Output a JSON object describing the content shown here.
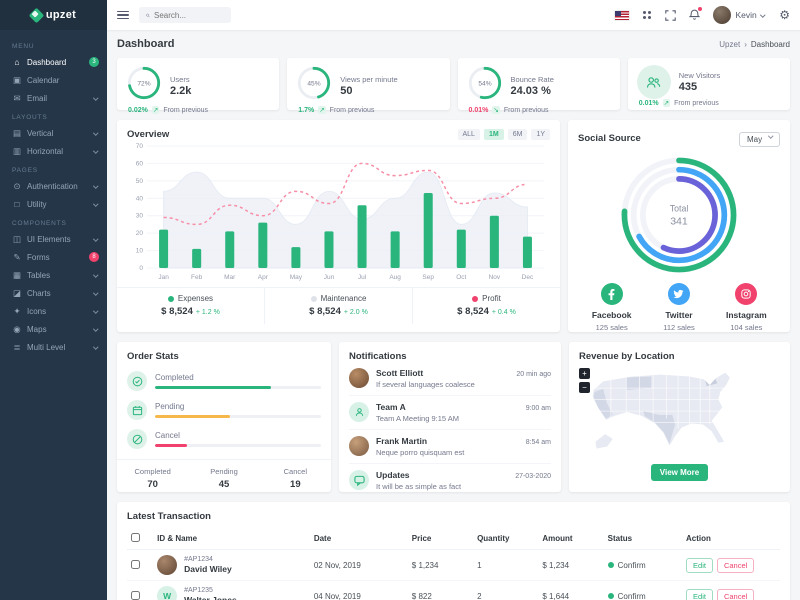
{
  "brand": {
    "name": "upzet"
  },
  "topbar": {
    "search_placeholder": "Search...",
    "user_name": "Kevin"
  },
  "page": {
    "title": "Dashboard",
    "breadcrumb_root": "Upzet",
    "breadcrumb_sep": "›",
    "breadcrumb_current": "Dashboard"
  },
  "sidebar": {
    "sections": [
      {
        "label": "MENU"
      },
      {
        "label": "LAYOUTS"
      },
      {
        "label": "PAGES"
      },
      {
        "label": "COMPONENTS"
      }
    ],
    "items": [
      {
        "label": "Dashboard",
        "badge": "3"
      },
      {
        "label": "Calendar"
      },
      {
        "label": "Email"
      },
      {
        "label": "Vertical"
      },
      {
        "label": "Horizontal"
      },
      {
        "label": "Authentication"
      },
      {
        "label": "Utility"
      },
      {
        "label": "UI Elements"
      },
      {
        "label": "Forms",
        "badge": "8"
      },
      {
        "label": "Tables"
      },
      {
        "label": "Charts"
      },
      {
        "label": "Icons"
      },
      {
        "label": "Maps"
      },
      {
        "label": "Multi Level"
      }
    ]
  },
  "stat_cards": [
    {
      "title": "Users",
      "value": "2.2k",
      "percent": 72,
      "delta": "0.02%",
      "arrow": "↗",
      "note": "From previous"
    },
    {
      "title": "Views per minute",
      "value": "50",
      "percent": 45,
      "delta": "1.7%",
      "arrow": "↗",
      "note": "From previous"
    },
    {
      "title": "Bounce Rate",
      "value": "24.03 %",
      "percent": 54,
      "delta": "0.01%",
      "arrow": "↘",
      "note": "From previous"
    },
    {
      "title": "New Visitors",
      "value": "435",
      "delta": "0.01%",
      "arrow": "↗",
      "note": "From previous"
    }
  ],
  "overview": {
    "title": "Overview",
    "ranges": [
      "ALL",
      "1M",
      "6M",
      "1Y"
    ],
    "active_range": "1M",
    "legend": [
      {
        "name": "Expenses",
        "amount": "$ 8,524",
        "change": "+ 1.2 %",
        "color": "#2ab57d"
      },
      {
        "name": "Maintenance",
        "amount": "$ 8,524",
        "change": "+ 2.0 %",
        "color": "#dfe2e9"
      },
      {
        "name": "Profit",
        "amount": "$ 8,524",
        "change": "+ 0.4 %",
        "color": "#f0426c"
      }
    ]
  },
  "chart_data": {
    "type": "bar",
    "title": "Overview",
    "categories": [
      "Jan",
      "Feb",
      "Mar",
      "Apr",
      "May",
      "Jun",
      "Jul",
      "Aug",
      "Sep",
      "Oct",
      "Nov",
      "Dec"
    ],
    "series": [
      {
        "name": "Expenses",
        "type": "bar",
        "color": "#2ab57d",
        "values": [
          22,
          11,
          21,
          26,
          12,
          21,
          36,
          21,
          43,
          22,
          30,
          18
        ]
      },
      {
        "name": "Maintenance",
        "type": "area",
        "color": "#eef1f7",
        "values": [
          44,
          55,
          40,
          40,
          25,
          44,
          28,
          40,
          55,
          25,
          43,
          35
        ]
      },
      {
        "name": "Profit",
        "type": "line",
        "style": "dashed",
        "color": "#f78fa7",
        "values": [
          29,
          25,
          36,
          30,
          44,
          37,
          60,
          53,
          56,
          37,
          40,
          48
        ]
      }
    ],
    "ylim": [
      0,
      70
    ],
    "yticks": [
      0,
      10,
      20,
      30,
      40,
      50,
      60,
      70
    ],
    "grid": true,
    "legend_position": "bottom"
  },
  "social": {
    "title": "Social Source",
    "month": "May",
    "total_label": "Total",
    "total": "341",
    "rings": [
      {
        "name": "Facebook",
        "color": "#2ab57d",
        "percent": 76
      },
      {
        "name": "Twitter",
        "color": "#42a5f5",
        "percent": 67
      },
      {
        "name": "Instagram",
        "color": "#6a62d8",
        "percent": 57
      }
    ],
    "items": [
      {
        "name": "Facebook",
        "sales": "125 sales",
        "color": "#2ab57d"
      },
      {
        "name": "Twitter",
        "sales": "112 sales",
        "color": "#42a5f5"
      },
      {
        "name": "Instagram",
        "sales": "104 sales",
        "color": "#f0426c"
      }
    ]
  },
  "order_stats": {
    "title": "Order Stats",
    "items": [
      {
        "label": "Completed",
        "percent": 70,
        "value": "70",
        "color": "#2ab57d"
      },
      {
        "label": "Pending",
        "percent": 45,
        "value": "45",
        "color": "#f7b84b"
      },
      {
        "label": "Cancel",
        "percent": 19,
        "value": "19",
        "color": "#f0426c"
      }
    ]
  },
  "notifications": {
    "title": "Notifications",
    "items": [
      {
        "name": "Scott Elliott",
        "text": "If several languages coalesce",
        "time": "20 min ago"
      },
      {
        "name": "Team A",
        "text": "Team A Meeting 9:15 AM",
        "time": "9:00 am"
      },
      {
        "name": "Frank Martin",
        "text": "Neque porro quisquam est",
        "time": "8:54 am"
      },
      {
        "name": "Updates",
        "text": "It will be as simple as fact",
        "time": "27-03-2020"
      }
    ]
  },
  "revenue": {
    "title": "Revenue by Location",
    "zoom_in": "+",
    "zoom_out": "−",
    "button": "View More"
  },
  "transactions": {
    "title": "Latest Transaction",
    "headers": [
      "ID & Name",
      "Date",
      "Price",
      "Quantity",
      "Amount",
      "Status",
      "Action"
    ],
    "edit_label": "Edit",
    "cancel_label": "Cancel",
    "rows": [
      {
        "id": "#AP1234",
        "name": "David Wiley",
        "date": "02 Nov, 2019",
        "price": "$ 1,234",
        "quantity": "1",
        "amount": "$ 1,234",
        "status": "Confirm",
        "avatar_initial": ""
      },
      {
        "id": "#AP1235",
        "name": "Walter Jones",
        "date": "04 Nov, 2019",
        "price": "$ 822",
        "quantity": "2",
        "amount": "$ 1,644",
        "status": "Confirm",
        "avatar_initial": "W"
      }
    ]
  }
}
